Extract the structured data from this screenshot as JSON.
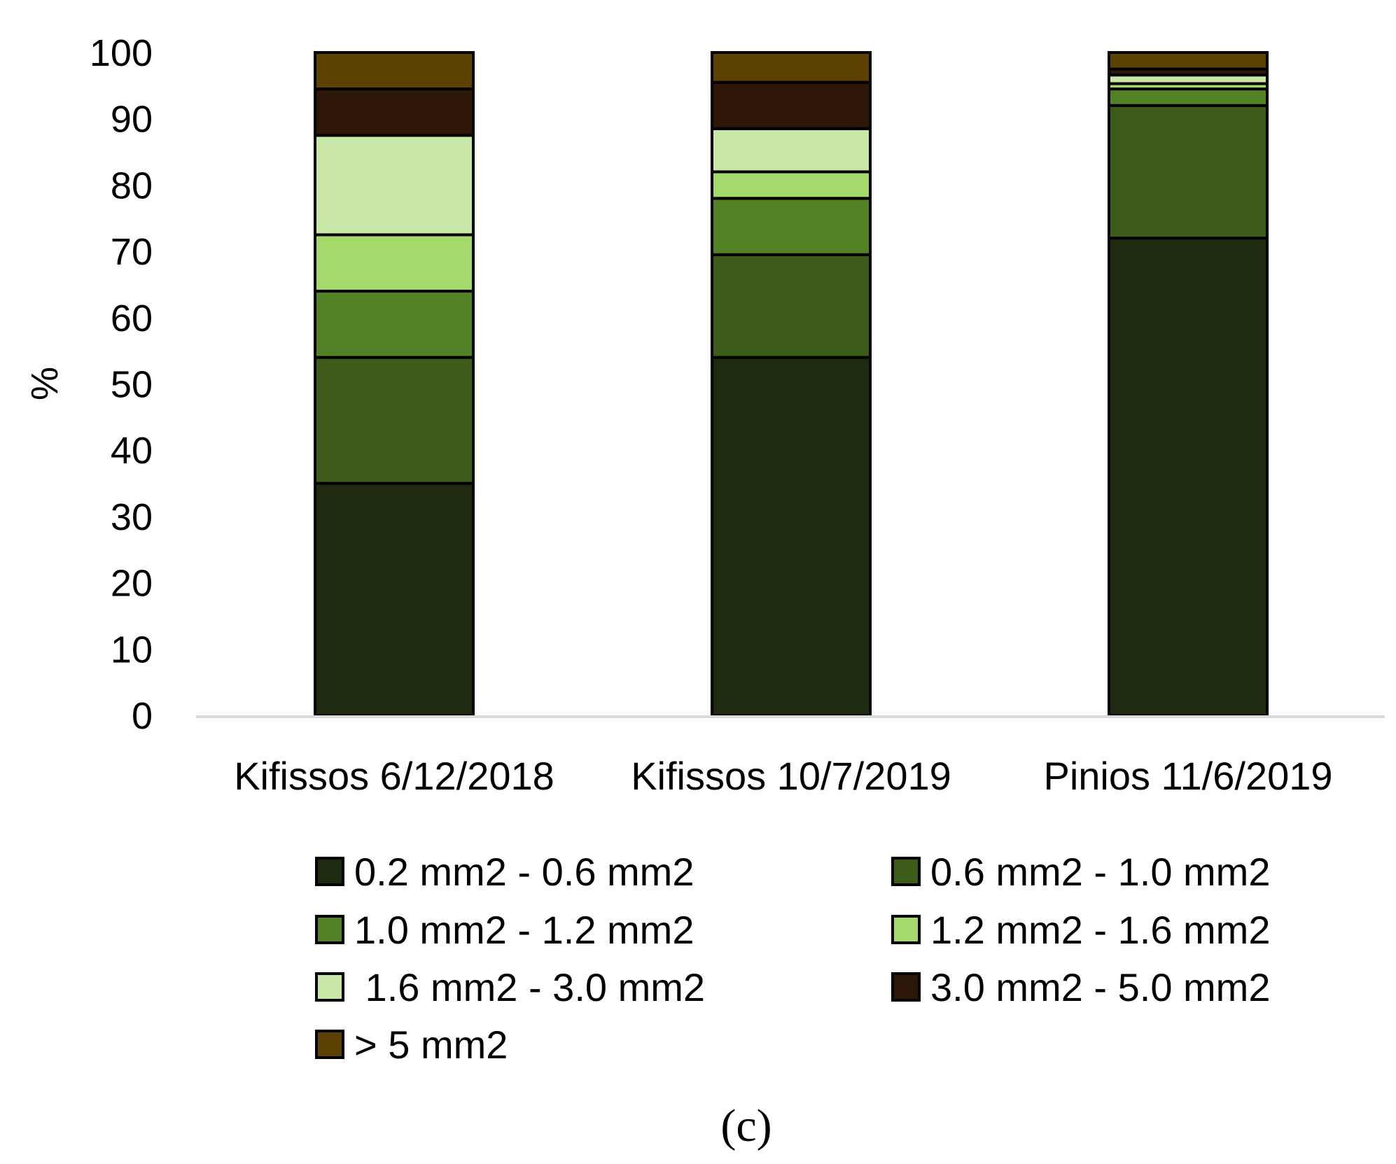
{
  "chart_data": {
    "type": "bar",
    "stacked": true,
    "ylabel": "%",
    "xlabel": "",
    "ylim": [
      0,
      100
    ],
    "y_ticks": [
      "0",
      "10",
      "20",
      "30",
      "40",
      "50",
      "60",
      "70",
      "80",
      "90",
      "100"
    ],
    "grid": false,
    "legend_position": "bottom",
    "categories": [
      "Kifissos 6/12/2018",
      "Kifissos 10/7/2019",
      "Pinios 11/6/2019"
    ],
    "series": [
      {
        "name": "0.2 mm2 - 0.6 mm2",
        "color": "#1f2b10",
        "values": [
          35,
          54,
          72
        ]
      },
      {
        "name": "0.6 mm2 - 1.0 mm2",
        "color": "#3d5c1a",
        "values": [
          19,
          15.5,
          20
        ]
      },
      {
        "name": "1.0 mm2 - 1.2 mm2",
        "color": "#538126",
        "values": [
          10,
          8.5,
          2.5
        ]
      },
      {
        "name": "1.2 mm2 - 1.6 mm2",
        "color": "#a6d96c",
        "values": [
          8.5,
          4,
          0.8
        ]
      },
      {
        "name": " 1.6 mm2 - 3.0 mm2",
        "color": "#c9e8a8",
        "values": [
          15,
          6.5,
          1.3
        ]
      },
      {
        "name": "3.0 mm2 - 5.0 mm2",
        "color": "#2e1608",
        "values": [
          7,
          7,
          0.9
        ]
      },
      {
        "name": "> 5 mm2",
        "color": "#5e4105",
        "values": [
          5.5,
          4.5,
          2.5
        ]
      }
    ],
    "panel_label": "(c)"
  }
}
